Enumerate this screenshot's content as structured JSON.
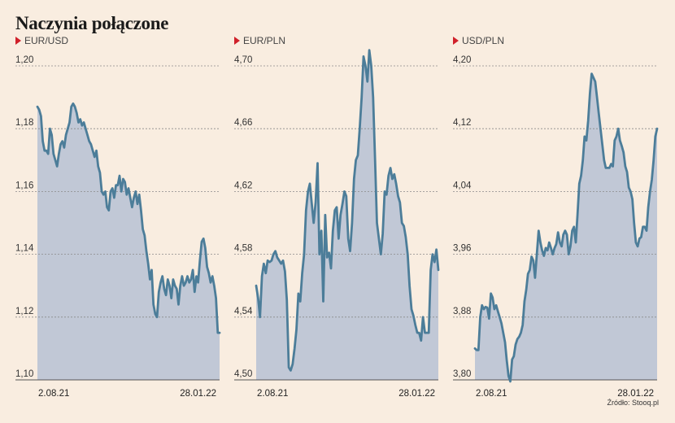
{
  "title": "Naczynia połączone",
  "source": "Źródło: Stooq.pl",
  "colors": {
    "line": "#4c7d99",
    "area": "#c1c8d6",
    "marker": "#d0202a",
    "grid": "#8a8a8a"
  },
  "chart_data": [
    {
      "type": "area",
      "name": "EUR/USD",
      "ylim": [
        1.1,
        1.2
      ],
      "yticks": [
        "1,20",
        "1,18",
        "1,16",
        "1,14",
        "1,12",
        "1,10"
      ],
      "x_labels": [
        "2.08.21",
        "28.01.22"
      ],
      "values": [
        1.187,
        1.186,
        1.184,
        1.176,
        1.173,
        1.173,
        1.172,
        1.18,
        1.178,
        1.172,
        1.17,
        1.168,
        1.172,
        1.175,
        1.176,
        1.174,
        1.178,
        1.18,
        1.182,
        1.187,
        1.188,
        1.187,
        1.185,
        1.182,
        1.183,
        1.181,
        1.182,
        1.18,
        1.178,
        1.176,
        1.175,
        1.173,
        1.171,
        1.173,
        1.168,
        1.166,
        1.16,
        1.159,
        1.16,
        1.155,
        1.154,
        1.16,
        1.161,
        1.158,
        1.162,
        1.162,
        1.165,
        1.16,
        1.164,
        1.163,
        1.159,
        1.161,
        1.158,
        1.155,
        1.158,
        1.16,
        1.156,
        1.159,
        1.154,
        1.148,
        1.146,
        1.141,
        1.137,
        1.132,
        1.135,
        1.124,
        1.121,
        1.12,
        1.128,
        1.131,
        1.133,
        1.129,
        1.127,
        1.132,
        1.13,
        1.126,
        1.132,
        1.13,
        1.129,
        1.124,
        1.13,
        1.133,
        1.13,
        1.131,
        1.133,
        1.131,
        1.132,
        1.135,
        1.128,
        1.133,
        1.131,
        1.138,
        1.144,
        1.145,
        1.142,
        1.136,
        1.134,
        1.131,
        1.133,
        1.13,
        1.126,
        1.115,
        1.115
      ]
    },
    {
      "type": "area",
      "name": "EUR/PLN",
      "ylim": [
        4.5,
        4.72
      ],
      "yticks": [
        "4,70",
        "4,66",
        "4,62",
        "4,58",
        "4,54",
        "4,50"
      ],
      "x_labels": [
        "2.08.21",
        "28.01.22"
      ],
      "values": [
        4.56,
        4.552,
        4.54,
        4.566,
        4.574,
        4.568,
        4.576,
        4.575,
        4.576,
        4.58,
        4.582,
        4.578,
        4.576,
        4.574,
        4.576,
        4.569,
        4.551,
        4.508,
        4.506,
        4.51,
        4.52,
        4.532,
        4.555,
        4.55,
        4.568,
        4.58,
        4.608,
        4.62,
        4.625,
        4.612,
        4.6,
        4.613,
        4.638,
        4.58,
        4.595,
        4.55,
        4.605,
        4.578,
        4.581,
        4.571,
        4.595,
        4.608,
        4.61,
        4.59,
        4.605,
        4.612,
        4.62,
        4.617,
        4.59,
        4.582,
        4.6,
        4.628,
        4.64,
        4.643,
        4.66,
        4.68,
        4.706,
        4.7,
        4.69,
        4.71,
        4.7,
        4.68,
        4.64,
        4.6,
        4.59,
        4.58,
        4.593,
        4.62,
        4.618,
        4.63,
        4.635,
        4.628,
        4.631,
        4.625,
        4.617,
        4.613,
        4.6,
        4.598,
        4.591,
        4.58,
        4.56,
        4.545,
        4.541,
        4.535,
        4.53,
        4.53,
        4.525,
        4.54,
        4.53,
        4.53,
        4.53,
        4.57,
        4.58,
        4.575,
        4.583,
        4.57
      ]
    },
    {
      "type": "area",
      "name": "USD/PLN",
      "ylim": [
        3.8,
        4.21
      ],
      "yticks": [
        "4,20",
        "4,12",
        "4,04",
        "3,96",
        "3,88",
        "3,80"
      ],
      "x_labels": [
        "2.08.21",
        "28.01.22"
      ],
      "values": [
        3.84,
        3.838,
        3.838,
        3.88,
        3.895,
        3.89,
        3.893,
        3.892,
        3.878,
        3.91,
        3.905,
        3.89,
        3.895,
        3.887,
        3.88,
        3.872,
        3.86,
        3.848,
        3.825,
        3.805,
        3.798,
        3.826,
        3.83,
        3.845,
        3.852,
        3.855,
        3.86,
        3.87,
        3.9,
        3.915,
        3.935,
        3.94,
        3.957,
        3.952,
        3.93,
        3.96,
        3.99,
        3.975,
        3.965,
        3.958,
        3.968,
        3.965,
        3.975,
        3.968,
        3.96,
        3.968,
        3.973,
        3.988,
        3.975,
        3.97,
        3.985,
        3.99,
        3.985,
        3.96,
        3.97,
        3.99,
        3.995,
        3.975,
        4.01,
        4.05,
        4.06,
        4.08,
        4.11,
        4.105,
        4.13,
        4.165,
        4.19,
        4.185,
        4.18,
        4.16,
        4.14,
        4.12,
        4.1,
        4.08,
        4.07,
        4.07,
        4.07,
        4.075,
        4.072,
        4.105,
        4.11,
        4.12,
        4.105,
        4.098,
        4.09,
        4.072,
        4.065,
        4.045,
        4.04,
        4.03,
        4.0,
        3.975,
        3.97,
        3.98,
        3.982,
        3.995,
        3.995,
        3.99,
        4.02,
        4.04,
        4.055,
        4.08,
        4.11,
        4.12
      ]
    }
  ]
}
